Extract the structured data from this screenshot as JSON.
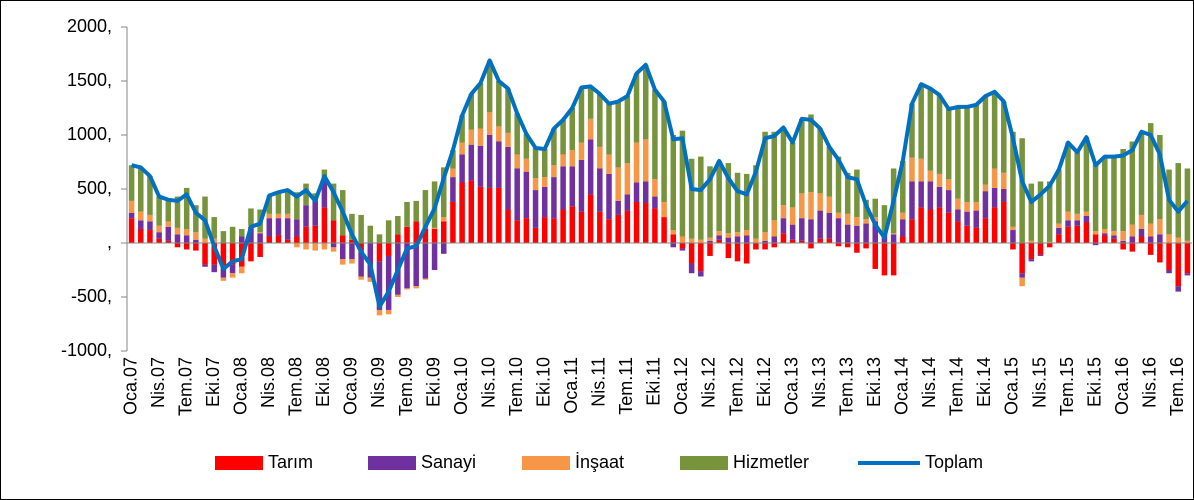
{
  "chart_data": {
    "type": "bar",
    "stacked": true,
    "categories": [
      "Oca.07",
      null,
      null,
      "Nis.07",
      null,
      null,
      "Tem.07",
      null,
      null,
      "Eki.07",
      null,
      null,
      "Oca.08",
      null,
      null,
      "Nis.08",
      null,
      null,
      "Tem.08",
      null,
      null,
      "Eki.08",
      null,
      null,
      "Oca.09",
      null,
      null,
      "Nis.09",
      null,
      null,
      "Tem.09",
      null,
      null,
      "Eki.09",
      null,
      null,
      "Oca.10",
      null,
      null,
      "Nis.10",
      null,
      null,
      "Tem.10",
      null,
      null,
      "Eki.10",
      null,
      null,
      "Oca.11",
      null,
      null,
      "Nis.11",
      null,
      null,
      "Tem.11",
      null,
      null,
      "Eki.11",
      null,
      null,
      "Oca.12",
      null,
      null,
      "Nis.12",
      null,
      null,
      "Tem.12",
      null,
      null,
      "Eki.12",
      null,
      null,
      "Oca.13",
      null,
      null,
      "Nis.13",
      null,
      null,
      "Tem.13",
      null,
      null,
      "Eki.13",
      null,
      null,
      "Oca.14",
      null,
      null,
      "Nis.14",
      null,
      null,
      "Tem.14",
      null,
      null,
      "Eki.14",
      null,
      null,
      "Oca.15",
      null,
      null,
      "Nis.15",
      null,
      null,
      "Tem.15",
      null,
      null,
      "Eki.15",
      null,
      null,
      "Oca.16",
      null,
      null,
      "Nis.16",
      null,
      null,
      "Tem.16",
      null
    ],
    "series": [
      {
        "name": "Tarım",
        "color": "#ff0000",
        "values": [
          230,
          130,
          120,
          40,
          20,
          -40,
          -60,
          -70,
          -200,
          -200,
          -220,
          -200,
          -220,
          -170,
          -130,
          60,
          70,
          30,
          60,
          150,
          160,
          330,
          210,
          70,
          30,
          -60,
          0,
          -170,
          -120,
          80,
          150,
          200,
          130,
          130,
          200,
          380,
          560,
          580,
          520,
          510,
          510,
          310,
          210,
          230,
          140,
          240,
          230,
          310,
          340,
          290,
          450,
          290,
          220,
          260,
          300,
          380,
          370,
          320,
          240,
          80,
          -50,
          -190,
          -260,
          -120,
          30,
          -140,
          -170,
          -190,
          -60,
          -60,
          -40,
          90,
          30,
          20,
          -50,
          40,
          40,
          -30,
          -40,
          -90,
          -50,
          -240,
          -300,
          -300,
          60,
          220,
          330,
          310,
          330,
          280,
          200,
          160,
          140,
          230,
          330,
          380,
          -60,
          -280,
          -150,
          -110,
          -40,
          80,
          150,
          160,
          190,
          80,
          70,
          40,
          -60,
          -80,
          60,
          -110,
          -180,
          -250,
          -400,
          -280
        ]
      },
      {
        "name": "Sanayi",
        "color": "#7030a0",
        "values": [
          50,
          80,
          80,
          60,
          130,
          80,
          70,
          30,
          -20,
          -70,
          -100,
          -80,
          60,
          150,
          90,
          170,
          160,
          200,
          160,
          200,
          230,
          260,
          -40,
          -150,
          -150,
          -250,
          -320,
          -450,
          -500,
          -480,
          -420,
          -400,
          -330,
          -250,
          -100,
          230,
          260,
          330,
          380,
          490,
          430,
          580,
          480,
          430,
          350,
          280,
          380,
          400,
          370,
          480,
          510,
          400,
          420,
          130,
          150,
          180,
          200,
          110,
          0,
          -40,
          -20,
          -90,
          -50,
          20,
          40,
          50,
          60,
          70,
          0,
          20,
          60,
          140,
          140,
          210,
          220,
          260,
          240,
          230,
          170,
          160,
          180,
          200,
          80,
          80,
          160,
          350,
          240,
          260,
          190,
          210,
          110,
          130,
          160,
          250,
          180,
          120,
          120,
          -40,
          -20,
          -10,
          0,
          60,
          60,
          50,
          60,
          -20,
          20,
          30,
          20,
          60,
          70,
          60,
          80,
          -30,
          -50,
          -20
        ]
      },
      {
        "name": "İnşaat",
        "color": "#f79646",
        "values": [
          110,
          80,
          60,
          60,
          50,
          60,
          60,
          70,
          40,
          40,
          -30,
          -40,
          -60,
          10,
          10,
          40,
          40,
          40,
          -40,
          -60,
          -70,
          -60,
          -40,
          -50,
          -40,
          -30,
          -40,
          -50,
          -40,
          -20,
          -10,
          -20,
          -10,
          10,
          40,
          80,
          110,
          140,
          160,
          210,
          140,
          130,
          130,
          120,
          110,
          90,
          110,
          110,
          150,
          160,
          190,
          200,
          180,
          310,
          290,
          370,
          390,
          160,
          140,
          40,
          60,
          40,
          30,
          30,
          40,
          40,
          40,
          50,
          40,
          80,
          150,
          120,
          160,
          230,
          250,
          160,
          150,
          50,
          100,
          80,
          40,
          40,
          20,
          10,
          60,
          220,
          210,
          100,
          120,
          100,
          100,
          90,
          80,
          60,
          180,
          150,
          30,
          -80,
          20,
          0,
          10,
          40,
          80,
          60,
          40,
          30,
          40,
          40,
          90,
          110,
          130,
          120,
          140,
          80,
          50,
          20
        ]
      },
      {
        "name": "Hizmetler",
        "color": "#77933c",
        "values": [
          330,
          410,
          360,
          270,
          200,
          290,
          380,
          250,
          390,
          200,
          110,
          150,
          70,
          160,
          210,
          170,
          200,
          220,
          250,
          200,
          70,
          90,
          340,
          420,
          240,
          260,
          160,
          80,
          210,
          170,
          230,
          190,
          360,
          430,
          460,
          170,
          250,
          330,
          420,
          480,
          420,
          410,
          380,
          230,
          280,
          260,
          340,
          320,
          390,
          510,
          300,
          490,
          470,
          610,
          620,
          640,
          690,
          830,
          930,
          880,
          980,
          740,
          770,
          660,
          650,
          650,
          550,
          520,
          680,
          930,
          820,
          720,
          600,
          690,
          720,
          600,
          460,
          520,
          380,
          440,
          180,
          170,
          250,
          600,
          480,
          500,
          690,
          760,
          730,
          650,
          850,
          880,
          900,
          820,
          710,
          660,
          880,
          970,
          530,
          570,
          560,
          500,
          640,
          570,
          690,
          630,
          670,
          690,
          760,
          770,
          770,
          930,
          780,
          600,
          690,
          670
        ]
      },
      {
        "name": "Toplam",
        "color": "#0070c0",
        "type": "line",
        "values": [
          720,
          700,
          620,
          430,
          400,
          390,
          450,
          280,
          210,
          -30,
          -240,
          -170,
          -150,
          150,
          180,
          440,
          470,
          490,
          430,
          490,
          390,
          620,
          470,
          290,
          80,
          -80,
          -200,
          -590,
          -450,
          -250,
          -50,
          -30,
          150,
          320,
          600,
          860,
          1180,
          1380,
          1480,
          1690,
          1500,
          1430,
          1200,
          1010,
          880,
          870,
          1060,
          1140,
          1250,
          1440,
          1450,
          1380,
          1290,
          1310,
          1360,
          1570,
          1650,
          1420,
          1310,
          960,
          970,
          500,
          490,
          590,
          760,
          600,
          480,
          450,
          660,
          970,
          990,
          1070,
          930,
          1150,
          1140,
          1060,
          890,
          770,
          610,
          590,
          350,
          170,
          50,
          390,
          760,
          1290,
          1470,
          1430,
          1370,
          1240,
          1260,
          1260,
          1280,
          1360,
          1400,
          1310,
          970,
          570,
          380,
          450,
          530,
          680,
          930,
          840,
          980,
          720,
          800,
          800,
          810,
          860,
          1030,
          1000,
          820,
          400,
          290,
          390
        ]
      }
    ],
    "ylim": [
      -1000,
      2000
    ],
    "yticks": [
      {
        "value": -1000,
        "label": "-1000,"
      },
      {
        "value": -500,
        "label": "-500,"
      },
      {
        "value": 0,
        "label": ","
      },
      {
        "value": 500,
        "label": "500,"
      },
      {
        "value": 1000,
        "label": "1000,"
      },
      {
        "value": 1500,
        "label": "1500,"
      },
      {
        "value": 2000,
        "label": "2000,"
      }
    ],
    "grid": false,
    "legend": "bottom"
  }
}
